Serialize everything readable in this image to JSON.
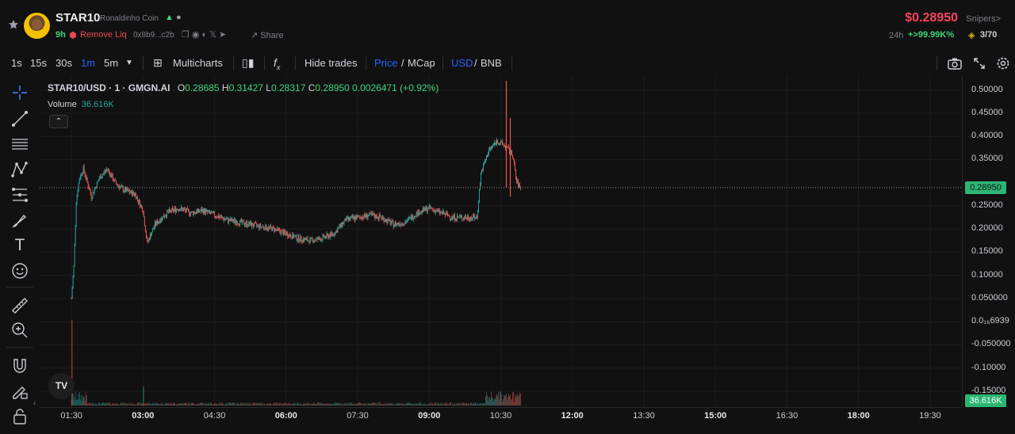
{
  "header": {
    "token_symbol": "STAR10",
    "token_name": "Ronaldinho Coin",
    "age": "9h",
    "remove_liq": "Remove Liq",
    "address": "0x8b9...c2b",
    "share_label": "Share",
    "price": "$0.28950",
    "snipers_label": "Snipers>",
    "change_period": "24h",
    "change_value": "+>99.99K%",
    "holders": "3/70"
  },
  "toolbar": {
    "intervals": [
      "1s",
      "15s",
      "30s",
      "1m",
      "5m"
    ],
    "active_interval": "1m",
    "multicharts": "Multicharts",
    "hide_trades": "Hide trades",
    "price_label": "Price",
    "mcap_label": "MCap",
    "usd_label": "USD",
    "bnb_label": "BNB"
  },
  "legend": {
    "symbol": "STAR10/USD · 1 · GMGN.AI",
    "o": "0.28685",
    "h": "0.31427",
    "l": "0.28317",
    "c": "0.28950",
    "change": "0.0026471 (+0.92%)",
    "volume_label": "Volume",
    "volume_value": "36.616K"
  },
  "price_axis": {
    "ticks": [
      "0.50000",
      "0.45000",
      "0.40000",
      "0.35000",
      "0.25000",
      "0.20000",
      "0.15000",
      "0.10000",
      "0.050000",
      "0.0₁₆6939",
      "-0.050000",
      "-0.10000",
      "-0.15000"
    ],
    "last_price": "0.28950",
    "volume_tag": "36.616K"
  },
  "time_axis": {
    "ticks": [
      "01:30",
      "03:00",
      "04:30",
      "06:00",
      "07:30",
      "09:00",
      "10:30",
      "12:00",
      "13:30",
      "15:00",
      "16:30",
      "18:00",
      "19:30"
    ],
    "major": [
      "03:00",
      "06:00",
      "09:00",
      "12:00",
      "15:00",
      "18:00"
    ]
  },
  "colors": {
    "up": "#26a69a",
    "down": "#ef5350",
    "price_red": "#f6465d",
    "green": "#3fd67a",
    "accent": "#2962ff"
  },
  "chart_data": {
    "type": "candlestick",
    "x_range": [
      "00:50",
      "20:10"
    ],
    "y_range": [
      -0.15,
      0.52
    ],
    "last_price": 0.2895,
    "path": [
      [
        "01:30",
        0.05
      ],
      [
        "01:33",
        0.12
      ],
      [
        "01:36",
        0.26
      ],
      [
        "01:40",
        0.31
      ],
      [
        "01:45",
        0.33
      ],
      [
        "01:55",
        0.27
      ],
      [
        "02:05",
        0.31
      ],
      [
        "02:15",
        0.33
      ],
      [
        "02:25",
        0.3
      ],
      [
        "02:35",
        0.285
      ],
      [
        "02:50",
        0.275
      ],
      [
        "03:00",
        0.24
      ],
      [
        "03:05",
        0.17
      ],
      [
        "03:15",
        0.21
      ],
      [
        "03:30",
        0.235
      ],
      [
        "03:45",
        0.245
      ],
      [
        "04:00",
        0.235
      ],
      [
        "04:15",
        0.24
      ],
      [
        "04:30",
        0.23
      ],
      [
        "04:45",
        0.22
      ],
      [
        "05:00",
        0.215
      ],
      [
        "05:15",
        0.21
      ],
      [
        "05:30",
        0.205
      ],
      [
        "05:45",
        0.2
      ],
      [
        "06:00",
        0.19
      ],
      [
        "06:15",
        0.18
      ],
      [
        "06:30",
        0.175
      ],
      [
        "06:45",
        0.18
      ],
      [
        "07:00",
        0.19
      ],
      [
        "07:15",
        0.22
      ],
      [
        "07:30",
        0.225
      ],
      [
        "07:45",
        0.23
      ],
      [
        "08:00",
        0.225
      ],
      [
        "08:15",
        0.21
      ],
      [
        "08:30",
        0.215
      ],
      [
        "08:45",
        0.235
      ],
      [
        "09:00",
        0.245
      ],
      [
        "09:15",
        0.235
      ],
      [
        "09:30",
        0.225
      ],
      [
        "09:45",
        0.225
      ],
      [
        "10:00",
        0.225
      ],
      [
        "10:05",
        0.32
      ],
      [
        "10:15",
        0.37
      ],
      [
        "10:25",
        0.39
      ],
      [
        "10:35",
        0.38
      ],
      [
        "10:45",
        0.36
      ],
      [
        "10:50",
        0.3
      ],
      [
        "10:55",
        0.2895
      ]
    ],
    "spikes": [
      [
        "10:37",
        0.52,
        0.29
      ],
      [
        "10:42",
        0.44,
        0.27
      ]
    ],
    "volume": {
      "peak": "36.616K"
    }
  }
}
